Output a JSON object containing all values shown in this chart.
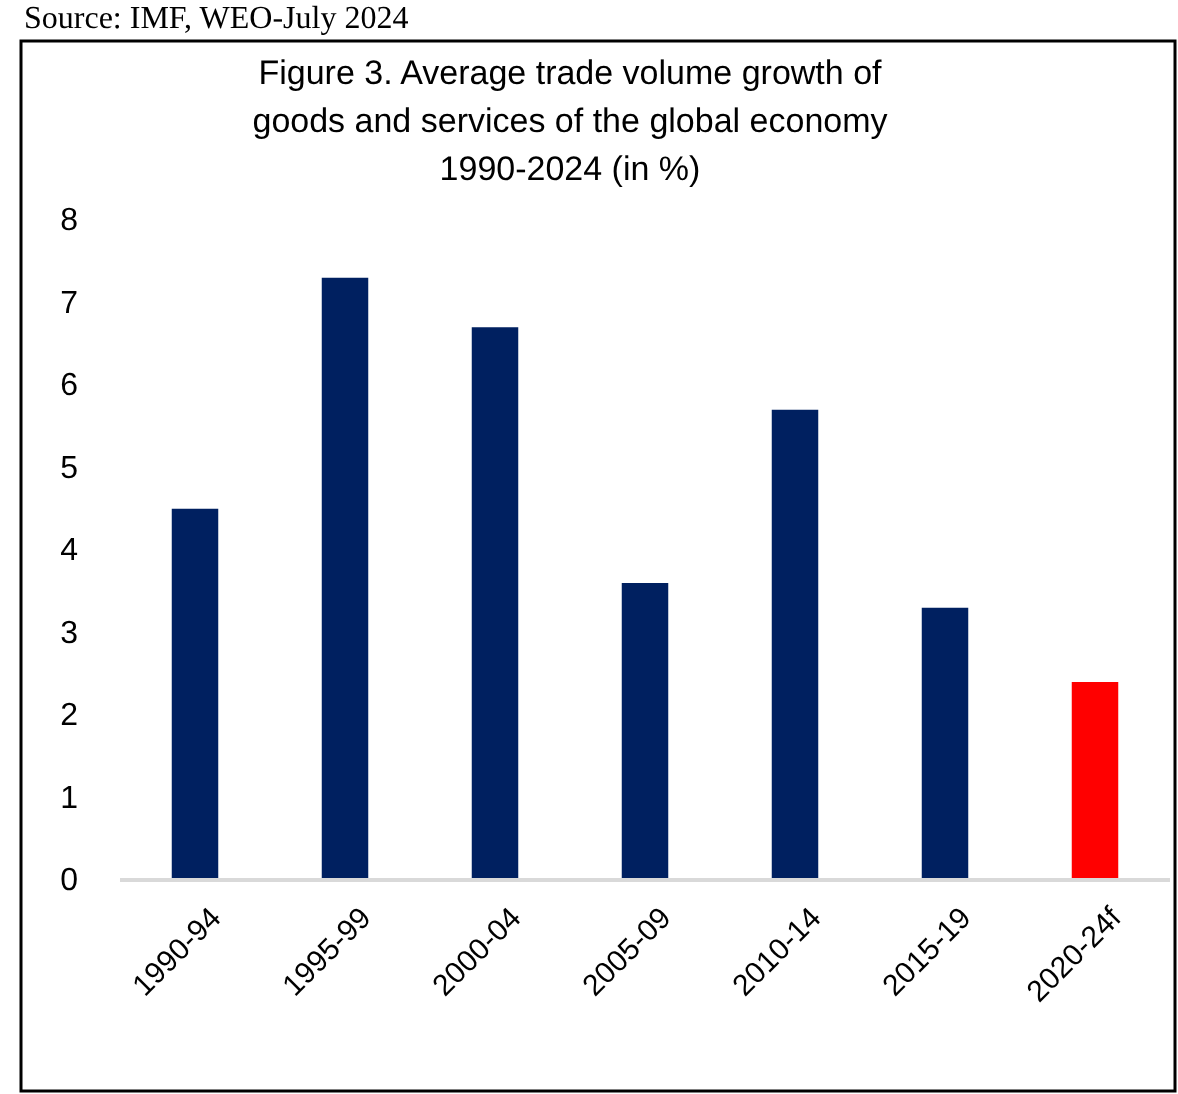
{
  "chart_data": {
    "type": "bar",
    "title": "Figure 3. Average trade volume growth of goods and services of the global economy 1990-2024 (in %)",
    "annotations": [
      "Source: IMF, WEO-July 2024"
    ],
    "categories": [
      "1990-94",
      "1995-99",
      "2000-04",
      "2005-09",
      "2010-14",
      "2015-19",
      "2020-24f"
    ],
    "values": [
      4.5,
      7.3,
      6.7,
      3.6,
      5.7,
      3.3,
      2.4
    ],
    "colors": [
      "#002060",
      "#002060",
      "#002060",
      "#002060",
      "#002060",
      "#002060",
      "#ff0000"
    ],
    "ylim": [
      0,
      8
    ],
    "yticks": [
      0,
      1,
      2,
      3,
      4,
      5,
      6,
      7,
      8
    ],
    "grid": false
  }
}
